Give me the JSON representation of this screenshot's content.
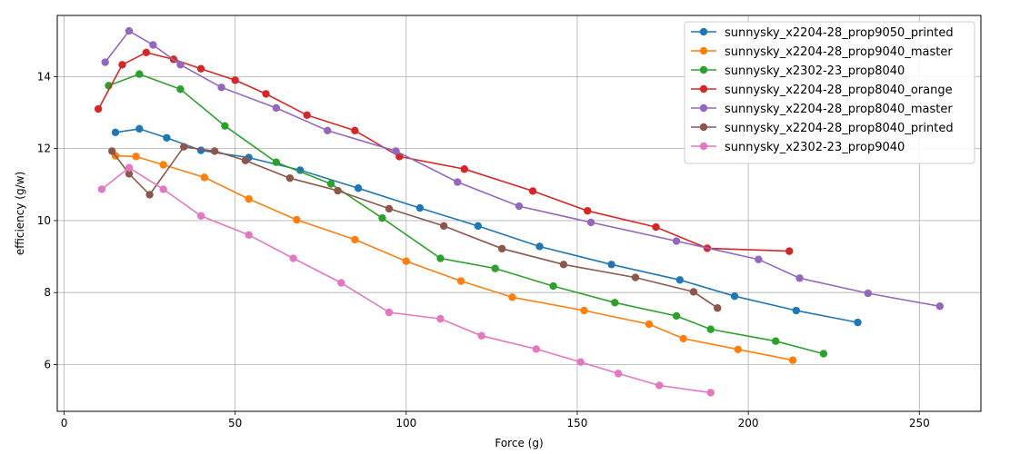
{
  "chart_data": {
    "type": "line",
    "title": "",
    "xlabel": "Force (g)",
    "ylabel": "efficiency (g/w)",
    "xlim": [
      -2,
      268
    ],
    "ylim": [
      4.7,
      15.7
    ],
    "xticks": [
      0,
      50,
      100,
      150,
      200,
      250
    ],
    "yticks": [
      6,
      8,
      10,
      12,
      14
    ],
    "grid": true,
    "legend_position": "top-right",
    "series": [
      {
        "name": "sunnysky_x2204-28_prop9050_printed",
        "color": "#1f77b4",
        "x": [
          15,
          22,
          30,
          40,
          54,
          69,
          86,
          104,
          121,
          139,
          160,
          180,
          196,
          214,
          232
        ],
        "y": [
          12.45,
          12.55,
          12.3,
          11.95,
          11.75,
          11.4,
          10.9,
          10.35,
          9.85,
          9.28,
          8.78,
          8.35,
          7.9,
          7.5,
          7.17
        ]
      },
      {
        "name": "sunnysky_x2204-28_prop9040_master",
        "color": "#ff7f0e",
        "x": [
          15,
          21,
          29,
          41,
          54,
          68,
          85,
          100,
          116,
          131,
          152,
          171,
          181,
          197,
          213
        ],
        "y": [
          11.8,
          11.78,
          11.55,
          11.2,
          10.6,
          10.02,
          9.47,
          8.87,
          8.32,
          7.87,
          7.5,
          7.12,
          6.72,
          6.42,
          6.12
        ]
      },
      {
        "name": "sunnysky_x2302-23_prop8040",
        "color": "#2ca02c",
        "x": [
          13,
          22,
          34,
          47,
          62,
          78,
          93,
          110,
          126,
          143,
          161,
          179,
          189,
          208,
          222
        ],
        "y": [
          13.75,
          14.07,
          13.65,
          12.63,
          11.62,
          11.02,
          10.07,
          8.95,
          8.67,
          8.18,
          7.72,
          7.35,
          6.98,
          6.65,
          6.3
        ]
      },
      {
        "name": "sunnysky_x2204-28_prop8040_orange",
        "color": "#d62728",
        "x": [
          10,
          17,
          24,
          32,
          40,
          50,
          59,
          71,
          85,
          98,
          117,
          137,
          153,
          173,
          188,
          212
        ],
        "y": [
          13.1,
          14.33,
          14.67,
          14.48,
          14.22,
          13.9,
          13.52,
          12.93,
          12.5,
          11.78,
          11.43,
          10.82,
          10.27,
          9.82,
          9.23,
          9.15
        ]
      },
      {
        "name": "sunnysky_x2204-28_prop8040_master",
        "color": "#9467bd",
        "x": [
          12,
          19,
          26,
          34,
          46,
          62,
          77,
          97,
          115,
          133,
          154,
          179,
          203,
          215,
          235,
          256
        ],
        "y": [
          14.4,
          15.27,
          14.88,
          14.33,
          13.7,
          13.13,
          12.5,
          11.93,
          11.07,
          10.4,
          9.95,
          9.43,
          8.92,
          8.4,
          7.98,
          7.62
        ]
      },
      {
        "name": "sunnysky_x2204-28_prop8040_printed",
        "color": "#8c564b",
        "x": [
          14,
          19,
          25,
          35,
          44,
          53,
          66,
          80,
          95,
          111,
          128,
          146,
          167,
          184,
          191
        ],
        "y": [
          11.93,
          11.3,
          10.72,
          12.05,
          11.93,
          11.67,
          11.18,
          10.83,
          10.33,
          9.85,
          9.22,
          8.78,
          8.42,
          8.02,
          7.57
        ]
      },
      {
        "name": "sunnysky_x2302-23_prop9040",
        "color": "#e377c2",
        "x": [
          11,
          19,
          29,
          40,
          54,
          67,
          81,
          95,
          110,
          122,
          138,
          151,
          162,
          174,
          189
        ],
        "y": [
          10.87,
          11.47,
          10.87,
          10.13,
          9.6,
          8.95,
          8.27,
          7.45,
          7.27,
          6.8,
          6.43,
          6.07,
          5.75,
          5.42,
          5.22
        ]
      }
    ]
  }
}
